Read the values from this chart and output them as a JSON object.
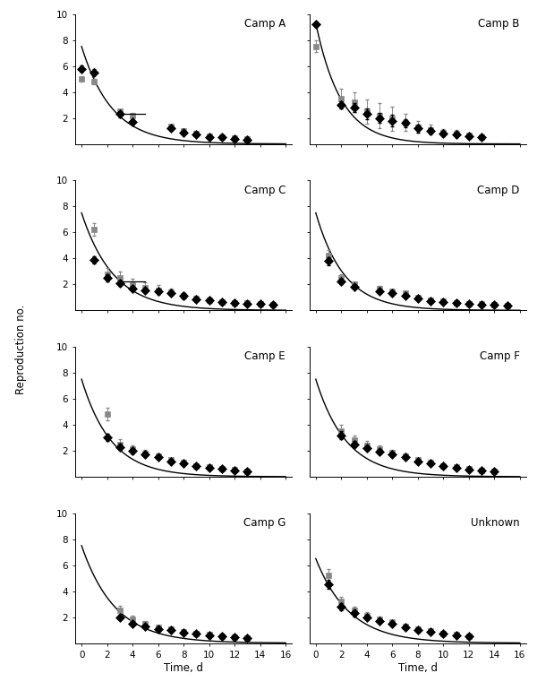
{
  "camps": [
    "Camp A",
    "Camp B",
    "Camp C",
    "Camp D",
    "Camp E",
    "Camp F",
    "Camp G",
    "Unknown"
  ],
  "curve_params": [
    {
      "R0": 7.5,
      "gamma": 0.42
    },
    {
      "R0": 9.3,
      "gamma": 0.5
    },
    {
      "R0": 7.5,
      "gamma": 0.4
    },
    {
      "R0": 7.5,
      "gamma": 0.45
    },
    {
      "R0": 7.5,
      "gamma": 0.43
    },
    {
      "R0": 7.5,
      "gamma": 0.42
    },
    {
      "R0": 7.5,
      "gamma": 0.38
    },
    {
      "R0": 6.5,
      "gamma": 0.38
    }
  ],
  "diamond_data": [
    {
      "x": [
        0,
        1,
        3,
        4,
        7,
        8,
        9,
        10,
        11,
        12,
        13
      ],
      "y": [
        5.8,
        5.5,
        2.3,
        1.7,
        1.2,
        0.9,
        0.7,
        0.5,
        0.5,
        0.4,
        0.35
      ],
      "yerr_lo": [
        0.25,
        0.25,
        0.25,
        0.18,
        0.12,
        0.1,
        0.08,
        0.06,
        0.06,
        0.05,
        0.04
      ],
      "yerr_hi": [
        0.25,
        0.25,
        0.25,
        0.18,
        0.12,
        0.1,
        0.08,
        0.06,
        0.06,
        0.05,
        0.04
      ]
    },
    {
      "x": [
        0,
        2,
        3,
        4,
        5,
        6,
        7,
        8,
        9,
        10,
        11,
        12,
        13
      ],
      "y": [
        9.2,
        3.0,
        2.8,
        2.3,
        2.0,
        1.8,
        1.6,
        1.2,
        1.0,
        0.8,
        0.7,
        0.6,
        0.5
      ],
      "yerr_lo": [
        0.2,
        0.3,
        0.35,
        0.4,
        0.4,
        0.45,
        0.3,
        0.3,
        0.2,
        0.18,
        0.15,
        0.1,
        0.08
      ],
      "yerr_hi": [
        0.2,
        0.3,
        0.35,
        0.4,
        0.4,
        0.45,
        0.3,
        0.3,
        0.2,
        0.18,
        0.15,
        0.1,
        0.08
      ]
    },
    {
      "x": [
        1,
        2,
        3,
        4,
        5,
        6,
        7,
        8,
        9,
        10,
        11,
        12,
        13,
        14,
        15
      ],
      "y": [
        3.9,
        2.5,
        2.1,
        1.7,
        1.55,
        1.45,
        1.35,
        1.1,
        0.85,
        0.75,
        0.65,
        0.58,
        0.52,
        0.47,
        0.42
      ],
      "yerr_lo": [
        0.28,
        0.25,
        0.22,
        0.18,
        0.14,
        0.12,
        0.1,
        0.1,
        0.1,
        0.08,
        0.08,
        0.06,
        0.05,
        0.05,
        0.04
      ],
      "yerr_hi": [
        0.28,
        0.25,
        0.22,
        0.18,
        0.14,
        0.12,
        0.1,
        0.1,
        0.1,
        0.08,
        0.08,
        0.06,
        0.05,
        0.05,
        0.04
      ]
    },
    {
      "x": [
        1,
        2,
        3,
        5,
        6,
        7,
        8,
        9,
        10,
        11,
        12,
        13,
        14,
        15
      ],
      "y": [
        3.8,
        2.2,
        1.8,
        1.5,
        1.3,
        1.1,
        0.9,
        0.7,
        0.65,
        0.55,
        0.5,
        0.45,
        0.4,
        0.35
      ],
      "yerr_lo": [
        0.3,
        0.2,
        0.15,
        0.1,
        0.1,
        0.1,
        0.08,
        0.08,
        0.05,
        0.05,
        0.04,
        0.04,
        0.03,
        0.03
      ],
      "yerr_hi": [
        0.3,
        0.2,
        0.15,
        0.1,
        0.1,
        0.1,
        0.08,
        0.08,
        0.05,
        0.05,
        0.04,
        0.04,
        0.03,
        0.03
      ]
    },
    {
      "x": [
        2,
        3,
        4,
        5,
        6,
        7,
        8,
        9,
        10,
        11,
        12,
        13
      ],
      "y": [
        3.0,
        2.3,
        2.0,
        1.7,
        1.5,
        1.2,
        1.0,
        0.8,
        0.7,
        0.6,
        0.5,
        0.4
      ],
      "yerr_lo": [
        0.28,
        0.22,
        0.18,
        0.14,
        0.12,
        0.1,
        0.08,
        0.08,
        0.06,
        0.05,
        0.05,
        0.04
      ],
      "yerr_hi": [
        0.28,
        0.22,
        0.18,
        0.14,
        0.12,
        0.1,
        0.08,
        0.08,
        0.06,
        0.05,
        0.05,
        0.04
      ]
    },
    {
      "x": [
        2,
        3,
        4,
        5,
        6,
        7,
        8,
        9,
        10,
        11,
        12,
        13,
        14
      ],
      "y": [
        3.2,
        2.5,
        2.2,
        1.9,
        1.7,
        1.5,
        1.2,
        1.0,
        0.8,
        0.7,
        0.55,
        0.45,
        0.4
      ],
      "yerr_lo": [
        0.28,
        0.22,
        0.18,
        0.16,
        0.14,
        0.1,
        0.1,
        0.08,
        0.08,
        0.06,
        0.05,
        0.04,
        0.04
      ],
      "yerr_hi": [
        0.28,
        0.22,
        0.18,
        0.16,
        0.14,
        0.1,
        0.1,
        0.08,
        0.08,
        0.06,
        0.05,
        0.04,
        0.04
      ]
    },
    {
      "x": [
        3,
        4,
        5,
        6,
        7,
        8,
        9,
        10,
        11,
        12,
        13
      ],
      "y": [
        2.0,
        1.5,
        1.3,
        1.1,
        1.0,
        0.8,
        0.7,
        0.6,
        0.5,
        0.45,
        0.4
      ],
      "yerr_lo": [
        0.18,
        0.12,
        0.1,
        0.08,
        0.08,
        0.06,
        0.06,
        0.05,
        0.04,
        0.04,
        0.03
      ],
      "yerr_hi": [
        0.18,
        0.12,
        0.1,
        0.08,
        0.08,
        0.06,
        0.06,
        0.05,
        0.04,
        0.04,
        0.03
      ]
    },
    {
      "x": [
        1,
        2,
        3,
        4,
        5,
        6,
        7,
        8,
        9,
        10,
        11,
        12
      ],
      "y": [
        4.5,
        2.8,
        2.3,
        2.0,
        1.7,
        1.5,
        1.2,
        1.0,
        0.9,
        0.7,
        0.6,
        0.5
      ],
      "yerr_lo": [
        0.35,
        0.28,
        0.25,
        0.2,
        0.16,
        0.13,
        0.1,
        0.08,
        0.08,
        0.06,
        0.05,
        0.04
      ],
      "yerr_hi": [
        0.35,
        0.28,
        0.25,
        0.2,
        0.16,
        0.13,
        0.1,
        0.08,
        0.08,
        0.06,
        0.05,
        0.04
      ]
    }
  ],
  "square_data": [
    {
      "x": [
        0,
        1,
        3,
        4,
        7,
        8,
        9,
        10,
        11,
        12,
        13
      ],
      "y": [
        5.0,
        4.8,
        2.5,
        2.2,
        1.35,
        1.0,
        0.8,
        0.58,
        0.55,
        0.44,
        0.4
      ],
      "yerr_lo": [
        0.18,
        0.18,
        0.18,
        0.16,
        0.1,
        0.08,
        0.07,
        0.05,
        0.05,
        0.04,
        0.03
      ],
      "yerr_hi": [
        0.18,
        0.18,
        0.18,
        0.16,
        0.1,
        0.08,
        0.07,
        0.05,
        0.05,
        0.04,
        0.03
      ]
    },
    {
      "x": [
        0,
        2,
        3,
        4,
        5,
        6,
        7,
        8,
        9,
        10,
        11,
        12,
        13
      ],
      "y": [
        7.5,
        3.5,
        3.2,
        2.5,
        2.2,
        1.95,
        1.65,
        1.3,
        1.1,
        0.9,
        0.8,
        0.65,
        0.55
      ],
      "yerr_lo": [
        0.45,
        0.75,
        0.75,
        0.95,
        0.95,
        0.95,
        0.65,
        0.45,
        0.38,
        0.28,
        0.28,
        0.18,
        0.14
      ],
      "yerr_hi": [
        0.45,
        0.75,
        0.75,
        0.95,
        0.95,
        0.95,
        0.65,
        0.45,
        0.38,
        0.28,
        0.28,
        0.18,
        0.14
      ]
    },
    {
      "x": [
        1,
        2,
        3,
        4,
        5,
        6,
        7,
        8,
        9,
        10,
        11,
        12,
        13,
        14,
        15
      ],
      "y": [
        6.2,
        2.8,
        2.5,
        1.95,
        1.75,
        1.55,
        1.42,
        1.12,
        0.92,
        0.78,
        0.67,
        0.6,
        0.54,
        0.49,
        0.44
      ],
      "yerr_lo": [
        0.48,
        0.48,
        0.48,
        0.48,
        0.38,
        0.38,
        0.28,
        0.28,
        0.18,
        0.18,
        0.14,
        0.1,
        0.08,
        0.07,
        0.06
      ],
      "yerr_hi": [
        0.48,
        0.48,
        0.48,
        0.48,
        0.38,
        0.38,
        0.28,
        0.28,
        0.18,
        0.18,
        0.14,
        0.1,
        0.08,
        0.07,
        0.06
      ]
    },
    {
      "x": [
        1,
        2,
        3,
        5,
        6,
        7,
        8,
        9,
        10,
        11,
        12,
        13,
        14,
        15
      ],
      "y": [
        4.2,
        2.5,
        2.0,
        1.7,
        1.5,
        1.3,
        1.0,
        0.8,
        0.7,
        0.6,
        0.52,
        0.48,
        0.42,
        0.38
      ],
      "yerr_lo": [
        0.45,
        0.28,
        0.18,
        0.18,
        0.14,
        0.11,
        0.09,
        0.09,
        0.05,
        0.05,
        0.04,
        0.04,
        0.04,
        0.03
      ],
      "yerr_hi": [
        0.45,
        0.28,
        0.18,
        0.18,
        0.14,
        0.11,
        0.09,
        0.09,
        0.05,
        0.05,
        0.04,
        0.04,
        0.04,
        0.03
      ]
    },
    {
      "x": [
        2,
        3,
        4,
        5,
        6,
        7,
        8,
        9,
        10,
        11,
        12,
        13
      ],
      "y": [
        4.8,
        2.5,
        2.1,
        1.8,
        1.6,
        1.3,
        1.1,
        0.85,
        0.75,
        0.62,
        0.52,
        0.42
      ],
      "yerr_lo": [
        0.48,
        0.38,
        0.28,
        0.24,
        0.19,
        0.14,
        0.11,
        0.09,
        0.07,
        0.06,
        0.05,
        0.04
      ],
      "yerr_hi": [
        0.48,
        0.38,
        0.28,
        0.24,
        0.19,
        0.14,
        0.11,
        0.09,
        0.07,
        0.06,
        0.05,
        0.04
      ]
    },
    {
      "x": [
        2,
        3,
        4,
        5,
        6,
        7,
        8,
        9,
        10,
        11,
        12,
        13,
        14
      ],
      "y": [
        3.5,
        2.8,
        2.4,
        2.1,
        1.85,
        1.6,
        1.3,
        1.1,
        0.85,
        0.75,
        0.6,
        0.5,
        0.42
      ],
      "yerr_lo": [
        0.48,
        0.38,
        0.33,
        0.28,
        0.24,
        0.19,
        0.14,
        0.11,
        0.09,
        0.07,
        0.06,
        0.05,
        0.04
      ],
      "yerr_hi": [
        0.48,
        0.38,
        0.33,
        0.28,
        0.24,
        0.19,
        0.14,
        0.11,
        0.09,
        0.07,
        0.06,
        0.05,
        0.04
      ]
    },
    {
      "x": [
        3,
        4,
        5,
        6,
        7,
        8,
        9,
        10,
        11,
        12,
        13
      ],
      "y": [
        2.5,
        1.8,
        1.5,
        1.2,
        1.05,
        0.9,
        0.75,
        0.65,
        0.55,
        0.48,
        0.42
      ],
      "yerr_lo": [
        0.38,
        0.28,
        0.19,
        0.14,
        0.11,
        0.09,
        0.07,
        0.06,
        0.05,
        0.04,
        0.03
      ],
      "yerr_hi": [
        0.38,
        0.28,
        0.19,
        0.14,
        0.11,
        0.09,
        0.07,
        0.06,
        0.05,
        0.04,
        0.03
      ]
    },
    {
      "x": [
        1,
        2,
        3,
        4,
        5,
        6,
        7,
        8,
        9,
        10,
        11,
        12
      ],
      "y": [
        5.2,
        3.2,
        2.5,
        2.1,
        1.8,
        1.6,
        1.3,
        1.1,
        0.95,
        0.75,
        0.65,
        0.52
      ],
      "yerr_lo": [
        0.48,
        0.38,
        0.33,
        0.28,
        0.24,
        0.19,
        0.14,
        0.11,
        0.09,
        0.07,
        0.06,
        0.05
      ],
      "yerr_hi": [
        0.48,
        0.38,
        0.33,
        0.28,
        0.24,
        0.19,
        0.14,
        0.11,
        0.09,
        0.07,
        0.06,
        0.05
      ]
    }
  ],
  "hline_data": [
    {
      "xlo": 3.0,
      "xhi": 5.0,
      "y": 2.3
    },
    null,
    {
      "xlo": 3.0,
      "xhi": 5.0,
      "y": 2.25
    },
    null,
    null,
    null,
    null,
    null
  ],
  "ylabel": "Reproduction no.",
  "xlabel": "Time, d",
  "xlim": [
    -0.5,
    16.5
  ],
  "ylim": [
    0,
    10
  ],
  "yticks": [
    2,
    4,
    6,
    8,
    10
  ],
  "ytick_labels": [
    "2",
    "4",
    "6",
    "8",
    "10"
  ],
  "xticks": [
    0,
    2,
    4,
    6,
    8,
    10,
    12,
    14,
    16
  ],
  "xtick_labels": [
    "0",
    "2",
    "4",
    "6",
    "8",
    "10",
    "12",
    "14",
    "16"
  ]
}
